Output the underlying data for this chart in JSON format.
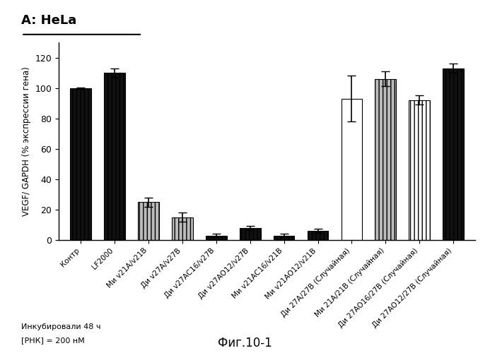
{
  "title": "A: HeLa",
  "ylabel": "VEGF/ GAPDH (% экспрессии гена)",
  "ylim": [
    0,
    130
  ],
  "yticks": [
    0,
    20,
    40,
    60,
    80,
    100,
    120
  ],
  "footnote_line1": "Инкубировали 48 ч",
  "footnote_line2": "[РНК] = 200 нМ",
  "figure_label": "Фиг.10-1",
  "categories": [
    "Контр",
    "LF2000",
    "Ми v21A/v21B",
    "Ди v27A/v27B",
    "Ди v27AC16/v27B",
    "Ди v27AO12/v27B",
    "Ми v21AC16/v21B",
    "Ми v21AO12/v21B",
    "Ди 27A/27B (Случайная)",
    "Ми 21A/21B (Случайная)",
    "Ди 27AO16/27B (Случайная)",
    "Ди 27AO12/27B (Случайная)"
  ],
  "values": [
    100,
    110,
    25,
    15,
    3,
    8,
    3,
    6,
    93,
    106,
    92,
    113
  ],
  "errors": [
    0.5,
    3,
    3,
    3,
    1,
    1.5,
    1,
    1.5,
    15,
    5,
    3,
    3
  ],
  "bar_styles": [
    {
      "fc": "#111111",
      "ec": "black",
      "hatch": "|||"
    },
    {
      "fc": "#111111",
      "ec": "black",
      "hatch": "|||"
    },
    {
      "fc": "#bbbbbb",
      "ec": "black",
      "hatch": "|||"
    },
    {
      "fc": "#bbbbbb",
      "ec": "black",
      "hatch": "|||"
    },
    {
      "fc": "#111111",
      "ec": "black",
      "hatch": "|||"
    },
    {
      "fc": "#111111",
      "ec": "black",
      "hatch": "|||"
    },
    {
      "fc": "#111111",
      "ec": "black",
      "hatch": "|||"
    },
    {
      "fc": "#111111",
      "ec": "black",
      "hatch": "|||"
    },
    {
      "fc": "#ffffff",
      "ec": "black",
      "hatch": ""
    },
    {
      "fc": "#bbbbbb",
      "ec": "black",
      "hatch": "|||"
    },
    {
      "fc": "#ffffff",
      "ec": "black",
      "hatch": "|||"
    },
    {
      "fc": "#111111",
      "ec": "black",
      "hatch": "|||"
    }
  ],
  "background_color": "#ffffff"
}
